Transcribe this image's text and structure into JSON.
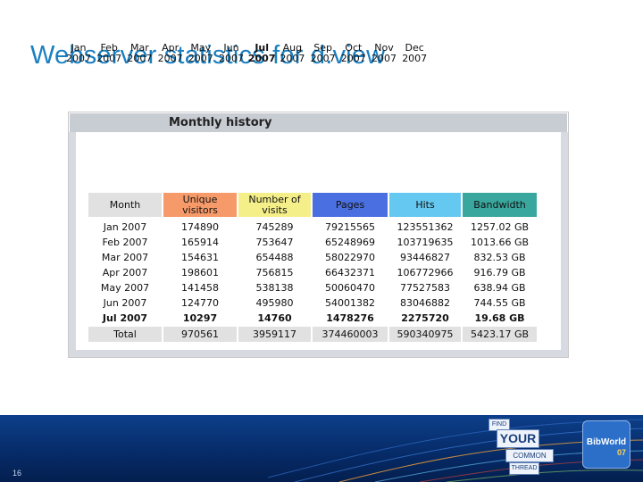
{
  "slide": {
    "title": "Webserver statistics for d.view",
    "page_number": "16"
  },
  "panel": {
    "title": "Monthly history"
  },
  "months": [
    {
      "month": "Jan",
      "year": "2007",
      "current": false
    },
    {
      "month": "Feb",
      "year": "2007",
      "current": false
    },
    {
      "month": "Mar",
      "year": "2007",
      "current": false
    },
    {
      "month": "Apr",
      "year": "2007",
      "current": false
    },
    {
      "month": "May",
      "year": "2007",
      "current": false
    },
    {
      "month": "Jun",
      "year": "2007",
      "current": false
    },
    {
      "month": "Jul",
      "year": "2007",
      "current": true
    },
    {
      "month": "Aug",
      "year": "2007",
      "current": false
    },
    {
      "month": "Sep",
      "year": "2007",
      "current": false
    },
    {
      "month": "Oct",
      "year": "2007",
      "current": false
    },
    {
      "month": "Nov",
      "year": "2007",
      "current": false
    },
    {
      "month": "Dec",
      "year": "2007",
      "current": false
    }
  ],
  "table": {
    "headers": [
      {
        "label": "Month",
        "color": "#e1e1e1"
      },
      {
        "label": "Unique visitors",
        "color": "#f79a69"
      },
      {
        "label": "Number of visits",
        "color": "#f5ef8a"
      },
      {
        "label": "Pages",
        "color": "#4a6fe0"
      },
      {
        "label": "Hits",
        "color": "#65c8f1"
      },
      {
        "label": "Bandwidth",
        "color": "#3aa79e"
      }
    ],
    "rows": [
      {
        "month": "Jan 2007",
        "unique": "174890",
        "visits": "745289",
        "pages": "79215565",
        "hits": "123551362",
        "bandwidth": "1257.02 GB",
        "current": false
      },
      {
        "month": "Feb 2007",
        "unique": "165914",
        "visits": "753647",
        "pages": "65248969",
        "hits": "103719635",
        "bandwidth": "1013.66 GB",
        "current": false
      },
      {
        "month": "Mar 2007",
        "unique": "154631",
        "visits": "654488",
        "pages": "58022970",
        "hits": "93446827",
        "bandwidth": "832.53 GB",
        "current": false
      },
      {
        "month": "Apr 2007",
        "unique": "198601",
        "visits": "756815",
        "pages": "66432371",
        "hits": "106772966",
        "bandwidth": "916.79 GB",
        "current": false
      },
      {
        "month": "May 2007",
        "unique": "141458",
        "visits": "538138",
        "pages": "50060470",
        "hits": "77527583",
        "bandwidth": "638.94 GB",
        "current": false
      },
      {
        "month": "Jun 2007",
        "unique": "124770",
        "visits": "495980",
        "pages": "54001382",
        "hits": "83046882",
        "bandwidth": "744.55 GB",
        "current": false
      },
      {
        "month": "Jul 2007",
        "unique": "10297",
        "visits": "14760",
        "pages": "1478276",
        "hits": "2275720",
        "bandwidth": "19.68 GB",
        "current": true
      }
    ],
    "total": {
      "month": "Total",
      "unique": "970561",
      "visits": "3959117",
      "pages": "374460003",
      "hits": "590340975",
      "bandwidth": "5423.17 GB"
    }
  },
  "footer": {
    "badges": [
      "FIND",
      "YOUR",
      "COMMON",
      "THREAD"
    ],
    "logo_name": "BibWorld",
    "logo_year": "07"
  }
}
